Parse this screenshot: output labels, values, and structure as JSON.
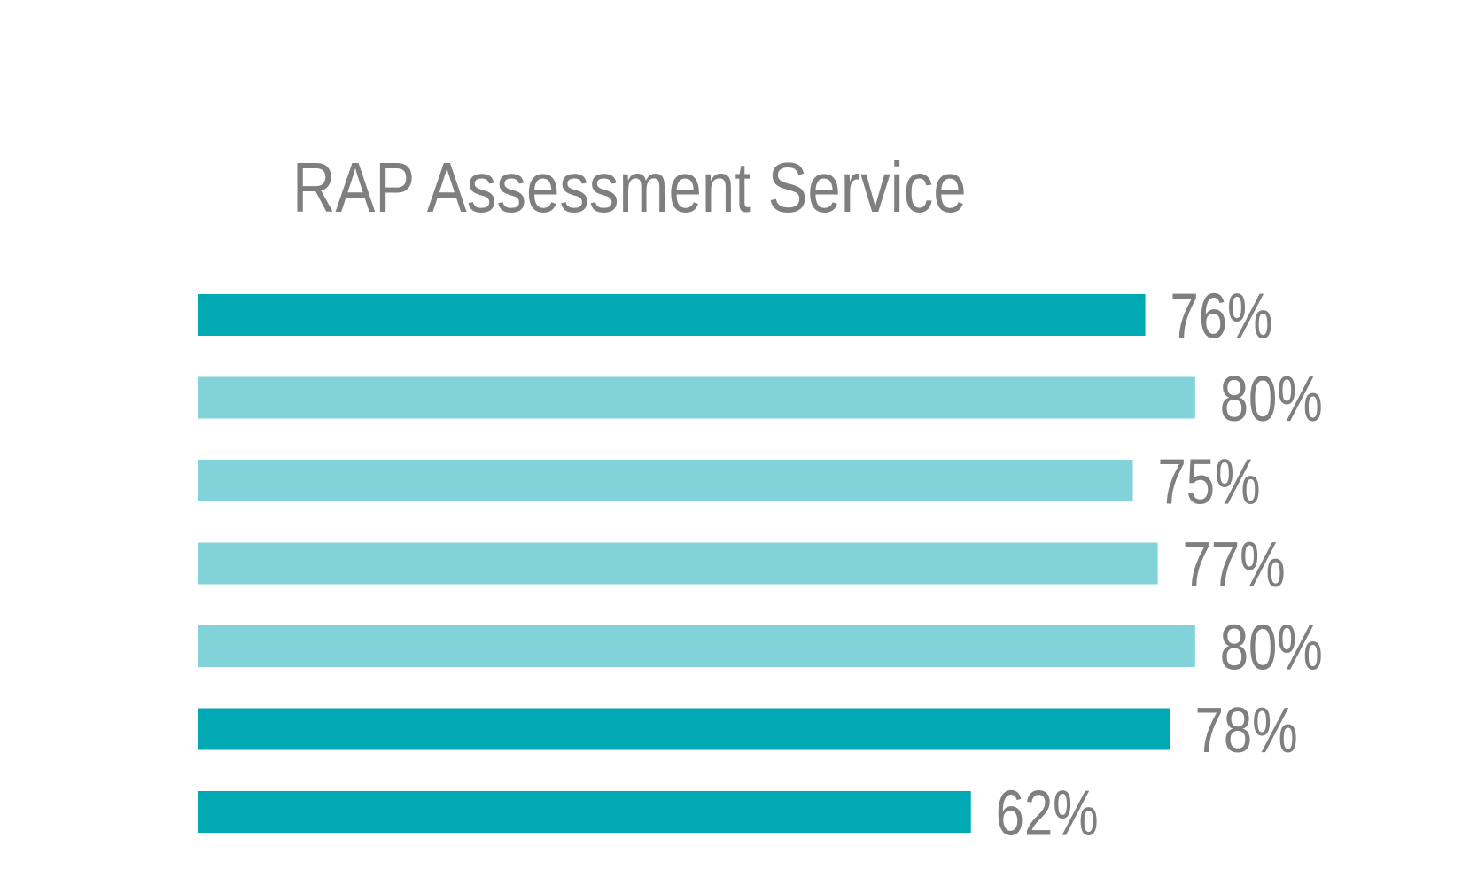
{
  "chart_data": {
    "type": "bar",
    "orientation": "horizontal",
    "title": "RAP Assessment Service",
    "categories": [
      "",
      "",
      "",
      "",
      "",
      "",
      ""
    ],
    "values": [
      76,
      80,
      75,
      77,
      80,
      78,
      62
    ],
    "value_labels": [
      "76%",
      "80%",
      "75%",
      "77%",
      "80%",
      "78%",
      "62%"
    ],
    "bar_colors": [
      "#00a9b4",
      "#82d3d9",
      "#82d3d9",
      "#82d3d9",
      "#82d3d9",
      "#00a9b4",
      "#00a9b4"
    ],
    "xlabel": "",
    "ylabel": "",
    "xlim": [
      0,
      80
    ],
    "unit": "%",
    "grid": false,
    "legend": "none"
  }
}
